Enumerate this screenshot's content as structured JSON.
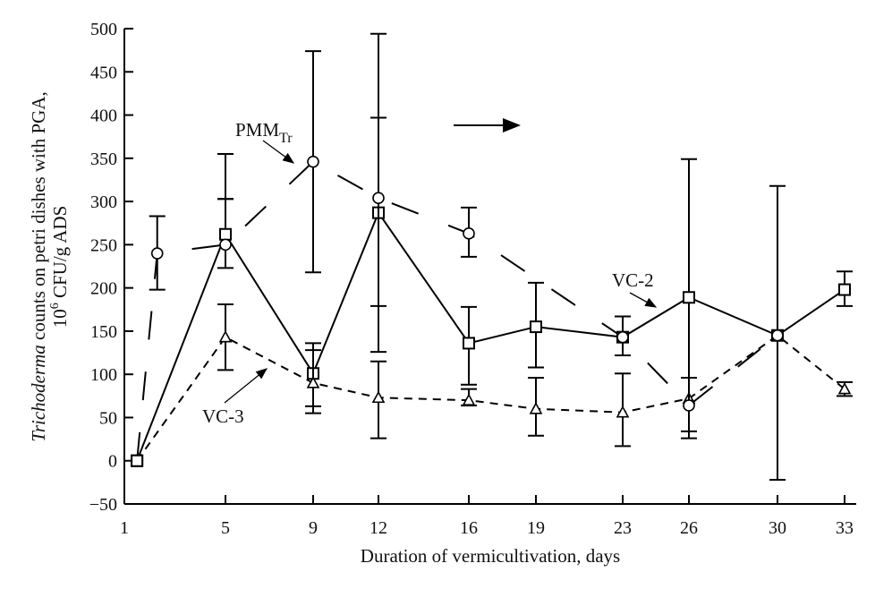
{
  "chart_data": {
    "type": "line",
    "title": "",
    "xlabel": "Duration of vermicultivation, days",
    "ylabel_line1": "Trichoderma counts on petri dishes with PGA,",
    "ylabel_italic_part": "Trichoderma",
    "ylabel_rest": " counts on petri dishes with PGA,",
    "ylabel_line2_prefix": "10",
    "ylabel_line2_sup": "6",
    "ylabel_line2_suffix": " CFU/g ADS",
    "x_ticks": [
      1,
      5,
      9,
      12,
      16,
      19,
      23,
      26,
      30,
      33
    ],
    "y_ticks": [
      -50,
      0,
      50,
      100,
      150,
      200,
      250,
      300,
      350,
      400,
      450,
      500
    ],
    "y_tick_labels": [
      "−50",
      "0",
      "50",
      "100",
      "150",
      "200",
      "250",
      "300",
      "350",
      "400",
      "450",
      "500"
    ],
    "ylim": [
      -50,
      500
    ],
    "xlim": [
      1,
      33
    ],
    "grid": false,
    "series": [
      {
        "name": "VC-2",
        "marker": "square",
        "line": "solid",
        "x": [
          1.5,
          5,
          9,
          12,
          16,
          19,
          23,
          26,
          30,
          33
        ],
        "y": [
          0,
          262,
          101,
          287,
          136,
          155,
          143,
          189,
          145,
          198
        ],
        "err_low": [
          null,
          223,
          63,
          179,
          88,
          108,
          122,
          26,
          -22,
          179
        ],
        "err_high": [
          null,
          355,
          136,
          494,
          178,
          206,
          167,
          349,
          318,
          219
        ]
      },
      {
        "name": "VC-3",
        "marker": "triangle",
        "line": "dashed",
        "x": [
          1.5,
          5,
          9,
          12,
          16,
          19,
          23,
          26,
          30,
          33
        ],
        "y": [
          0,
          143,
          90,
          73,
          70,
          60,
          56,
          72,
          145,
          83
        ],
        "err_low": [
          null,
          105,
          55,
          26,
          64,
          29,
          17,
          null,
          null,
          75
        ],
        "err_high": [
          null,
          181,
          128,
          115,
          83,
          96,
          101,
          null,
          null,
          91
        ]
      },
      {
        "name": "PMM_Tr",
        "marker": "circle",
        "line": "long-dashed",
        "x": [
          1.5,
          2.3,
          5,
          9,
          12,
          16,
          23,
          26,
          30
        ],
        "y": [
          0,
          240,
          250,
          346,
          304,
          263,
          143,
          64,
          145
        ],
        "err_low": [
          null,
          198,
          303,
          218,
          126,
          236,
          122,
          34,
          null
        ],
        "err_high": [
          null,
          283,
          303,
          474,
          397,
          293,
          167,
          96,
          null
        ]
      }
    ],
    "annotations": [
      {
        "label": "PMM",
        "sub": "Tr",
        "target_series": "PMM_Tr"
      },
      {
        "label": "VC-2",
        "target_series": "VC-2"
      },
      {
        "label": "VC-3",
        "target_series": "VC-3"
      },
      {
        "label": "",
        "type": "arrow-right"
      }
    ],
    "legend": "none (inline annotations)"
  }
}
